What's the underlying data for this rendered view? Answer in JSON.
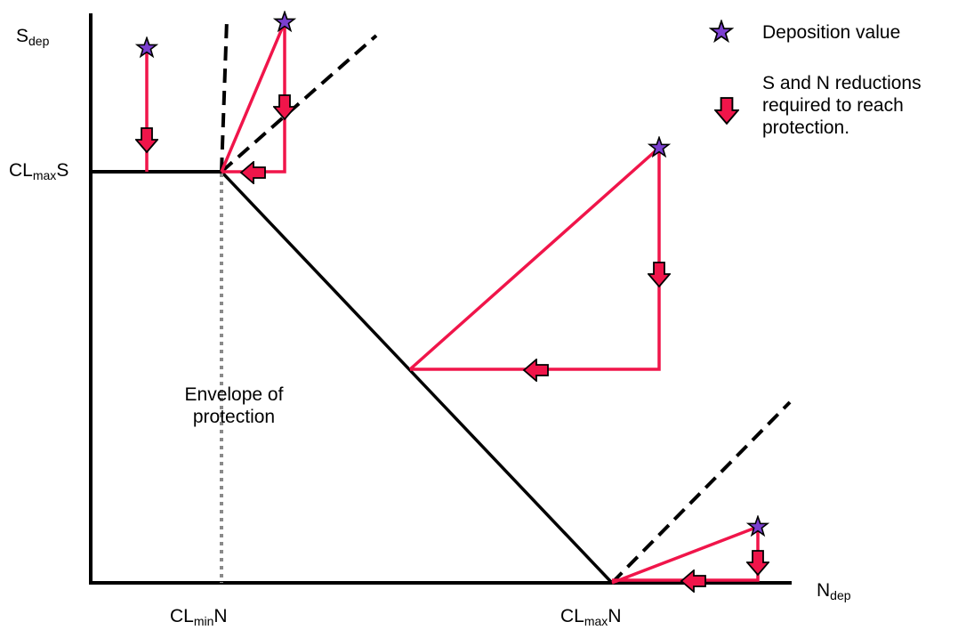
{
  "axes": {
    "y_label": {
      "base": "S",
      "sub": "dep"
    },
    "x_label": {
      "base": "N",
      "sub": "dep"
    },
    "cl_max_s": {
      "base": "CL",
      "sub": "max",
      "tail": "S"
    },
    "cl_min_n": {
      "base": "CL",
      "sub": "min",
      "tail": "N"
    },
    "cl_max_n": {
      "base": "CL",
      "sub": "max",
      "tail": "N"
    }
  },
  "region_label": [
    "Envelope of",
    "protection"
  ],
  "legend": {
    "star_label": "Deposition value",
    "arrow_label": [
      "S and N reductions",
      "required to reach",
      "protection."
    ]
  },
  "colors": {
    "boundary": "#000000",
    "path": "#f0154a",
    "arrow_fill": "#f0154a",
    "star_fill": "#7b3fd0",
    "dotted": "#8a8a8a"
  },
  "icons": {
    "star": "star-icon",
    "arrow": "red-arrow-icon"
  }
}
